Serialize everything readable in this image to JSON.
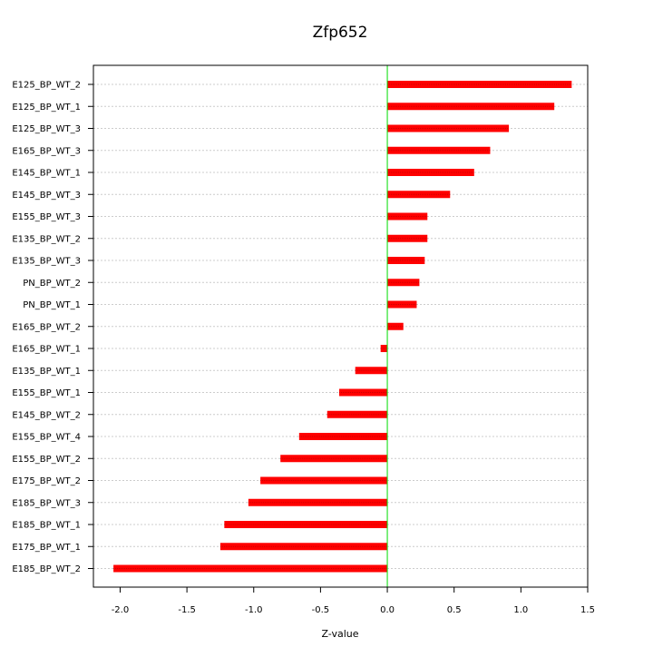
{
  "chart_data": {
    "type": "bar",
    "orientation": "horizontal",
    "title": "Zfp652",
    "xlabel": "Z-value",
    "ylabel": "",
    "xlim": [
      -2.2,
      1.5
    ],
    "xticks": [
      -2.0,
      -1.5,
      -1.0,
      -0.5,
      0.0,
      0.5,
      1.0,
      1.5
    ],
    "xtick_labels": [
      "-2.0",
      "-1.5",
      "-1.0",
      "-0.5",
      "0.0",
      "0.5",
      "1.0",
      "1.5"
    ],
    "grid": true,
    "reference_line": 0,
    "colors": {
      "bar": "#ff0000",
      "bar_core": "#cc0000",
      "zero_line": "#00dd00",
      "grid": "#cccccc",
      "frame": "#000000"
    },
    "categories": [
      "E125_BP_WT_2",
      "E125_BP_WT_1",
      "E125_BP_WT_3",
      "E165_BP_WT_3",
      "E145_BP_WT_1",
      "E145_BP_WT_3",
      "E155_BP_WT_3",
      "E135_BP_WT_2",
      "E135_BP_WT_3",
      "PN_BP_WT_2",
      "PN_BP_WT_1",
      "E165_BP_WT_2",
      "E165_BP_WT_1",
      "E135_BP_WT_1",
      "E155_BP_WT_1",
      "E145_BP_WT_2",
      "E155_BP_WT_4",
      "E155_BP_WT_2",
      "E175_BP_WT_2",
      "E185_BP_WT_3",
      "E185_BP_WT_1",
      "E175_BP_WT_1",
      "E185_BP_WT_2"
    ],
    "values": [
      1.38,
      1.25,
      0.91,
      0.77,
      0.65,
      0.47,
      0.3,
      0.3,
      0.28,
      0.24,
      0.22,
      0.12,
      -0.05,
      -0.24,
      -0.36,
      -0.45,
      -0.66,
      -0.8,
      -0.95,
      -1.04,
      -1.22,
      -1.25,
      -2.05
    ]
  }
}
